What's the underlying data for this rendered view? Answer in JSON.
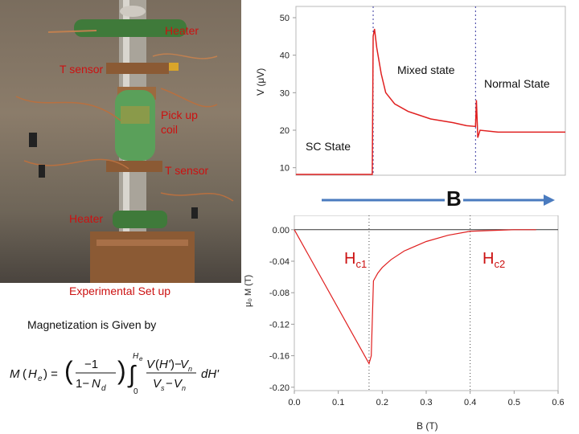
{
  "photo_labels": {
    "heater_top": "Heater",
    "t_sensor_top": "T sensor",
    "pickup_coil": [
      "Pick up",
      "coil"
    ],
    "t_sensor_bottom": "T sensor",
    "heater_bottom": "Heater"
  },
  "caption": "Experimental Set up",
  "formula_intro": "Magnetization is Given by",
  "field_label": "B",
  "colors": {
    "curve": "#e02020",
    "arrow": "#4a7bbf",
    "label_red": "#cc1111"
  },
  "chart_data": [
    {
      "type": "line",
      "title": "",
      "xlabel": "",
      "ylabel": "V (μV)",
      "yticks": [
        "10",
        "20",
        "30",
        "40",
        "50"
      ],
      "ylim": [
        8,
        53
      ],
      "xlim": [
        0,
        0.6
      ],
      "annotations": [
        "Mixed state",
        "Normal State",
        "SC State"
      ],
      "series": [
        {
          "values_xy": [
            [
              0,
              5
            ],
            [
              0.17,
              5
            ],
            [
              0.172,
              45
            ],
            [
              0.175,
              47
            ],
            [
              0.18,
              42
            ],
            [
              0.19,
              35
            ],
            [
              0.2,
              30
            ],
            [
              0.22,
              27
            ],
            [
              0.25,
              25
            ],
            [
              0.3,
              23
            ],
            [
              0.35,
              22
            ],
            [
              0.38,
              21.2
            ],
            [
              0.4,
              21
            ],
            [
              0.402,
              28
            ],
            [
              0.405,
              18
            ],
            [
              0.41,
              20
            ],
            [
              0.45,
              19.5
            ],
            [
              0.5,
              19.5
            ],
            [
              0.6,
              19.5
            ]
          ]
        }
      ]
    },
    {
      "type": "line",
      "title": "",
      "xlabel": "B (T)",
      "ylabel": "μ₀ M (T)",
      "xticks": [
        "0.0",
        "0.1",
        "0.2",
        "0.3",
        "0.4",
        "0.5",
        "0.6"
      ],
      "yticks": [
        "0.00",
        "-0.04",
        "-0.08",
        "-0.12",
        "-0.16",
        "-0.20"
      ],
      "xlim": [
        0,
        0.6
      ],
      "ylim": [
        -0.2,
        0.01
      ],
      "annotations": [
        "Hc1",
        "Hc2"
      ],
      "series": [
        {
          "values_xy": [
            [
              0,
              0
            ],
            [
              0.17,
              -0.17
            ],
            [
              0.175,
              -0.16
            ],
            [
              0.18,
              -0.065
            ],
            [
              0.19,
              -0.055
            ],
            [
              0.2,
              -0.048
            ],
            [
              0.22,
              -0.038
            ],
            [
              0.25,
              -0.027
            ],
            [
              0.3,
              -0.015
            ],
            [
              0.35,
              -0.007
            ],
            [
              0.4,
              -0.002
            ],
            [
              0.45,
              -0.001
            ],
            [
              0.5,
              0
            ],
            [
              0.55,
              0
            ]
          ]
        }
      ]
    }
  ]
}
